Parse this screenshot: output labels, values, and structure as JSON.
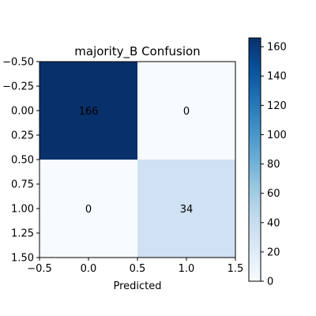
{
  "chart_data": {
    "type": "heatmap",
    "title": "majority_B Confusion",
    "xlabel": "Predicted",
    "ylabel": "",
    "matrix": [
      [
        166,
        0
      ],
      [
        0,
        34
      ]
    ],
    "xlim": [
      -0.5,
      1.5
    ],
    "ylim": [
      1.5,
      -0.5
    ],
    "xticks": [
      "−0.5",
      "0.0",
      "0.5",
      "1.0",
      "1.5"
    ],
    "yticks": [
      "−0.50",
      "−0.25",
      "0.00",
      "0.25",
      "0.50",
      "0.75",
      "1.00",
      "1.25",
      "1.50"
    ],
    "colorbar": {
      "min": 0,
      "max": 166,
      "ticks": [
        "0",
        "20",
        "40",
        "60",
        "80",
        "100",
        "120",
        "140",
        "160"
      ],
      "colormap": "Blues"
    },
    "grid": false
  }
}
